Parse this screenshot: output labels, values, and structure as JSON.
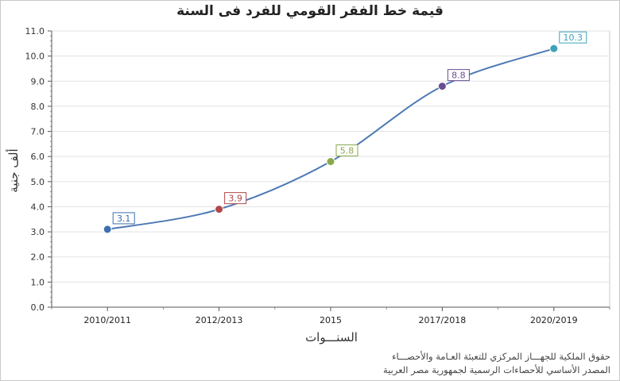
{
  "chart_data": {
    "type": "line",
    "title": "قيمة خط الفقر القومي للفرد فى السنة",
    "xlabel": "السنـــوات",
    "ylabel": "ألف جنية",
    "categories": [
      "2010/2011",
      "2012/2013",
      "2015",
      "2017/2018",
      "2020/2019"
    ],
    "series": [
      {
        "values": [
          3.1,
          3.9,
          5.8,
          8.8,
          10.3
        ],
        "point_colors": [
          "#3f6fb0",
          "#b04848",
          "#8aa94a",
          "#6a4c93",
          "#3ea2b9"
        ]
      }
    ],
    "ylim": [
      0,
      11
    ],
    "yticks": [
      "0.0",
      "1.0",
      "2.0",
      "3.0",
      "4.0",
      "5.0",
      "6.0",
      "7.0",
      "8.0",
      "9.0",
      "10.0",
      "11.0"
    ],
    "grid": true,
    "line_color": "#4e79b5"
  },
  "footer": {
    "line1": "حقوق الملكية للجهـــاز المركزي للتعبئة العـامة والأحصـــاء",
    "line2": "المصدر الأساسي للأحصاءات الرسمية لجمهورية مصر العربية"
  }
}
